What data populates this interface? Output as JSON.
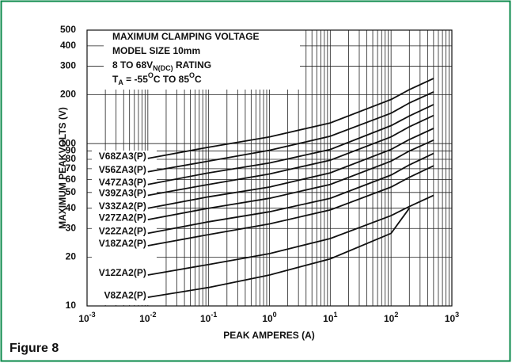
{
  "chart_data": {
    "type": "line",
    "caption": "Figure 8",
    "xlabel": "PEAK AMPERES (A)",
    "ylabel": "MAXIMUM PEAKVOLTS (V)",
    "annotation": [
      [
        {
          "text": "MAXIMUM CLAMPING VOLTAGE"
        }
      ],
      [
        {
          "text": "MODEL SIZE 10mm"
        }
      ],
      [
        {
          "text": "8 TO 68V"
        },
        {
          "text": "N(DC)",
          "style": "sub"
        },
        {
          "text": " RATING"
        }
      ],
      [
        {
          "text": "T"
        },
        {
          "text": "A",
          "style": "sub"
        },
        {
          "text": " = -55"
        },
        {
          "text": "O",
          "style": "sup"
        },
        {
          "text": "C TO 85"
        },
        {
          "text": "O",
          "style": "sup"
        },
        {
          "text": "C"
        }
      ]
    ],
    "xlog": true,
    "ylog": true,
    "grid": true,
    "minor_xgrid": true,
    "xlim": [
      0.001,
      1000
    ],
    "ylim": [
      10,
      500
    ],
    "xticks": [
      {
        "value": 0.001,
        "label": "10",
        "sup": "-3"
      },
      {
        "value": 0.01,
        "label": "10",
        "sup": "-2"
      },
      {
        "value": 0.1,
        "label": "10",
        "sup": "-1"
      },
      {
        "value": 1,
        "label": "10",
        "sup": "0"
      },
      {
        "value": 10,
        "label": "10",
        "sup": "1"
      },
      {
        "value": 100,
        "label": "10",
        "sup": "2"
      },
      {
        "value": 1000,
        "label": "10",
        "sup": "3"
      }
    ],
    "yticks": [
      10,
      20,
      30,
      40,
      50,
      60,
      70,
      80,
      90,
      100,
      200,
      300,
      400,
      500
    ],
    "x": [
      0.01,
      0.1,
      1,
      10,
      100,
      200,
      500
    ],
    "series": [
      {
        "name": "V68ZA3(P)",
        "color": "#111",
        "values": [
          81,
          95,
          110,
          134,
          187,
          215,
          252
        ]
      },
      {
        "name": "V56ZA3(P)",
        "color": "#111",
        "values": [
          67,
          78,
          91,
          111,
          154,
          178,
          208
        ]
      },
      {
        "name": "V47ZA3(P)",
        "color": "#111",
        "values": [
          56,
          66,
          76,
          92,
          129,
          148,
          174
        ]
      },
      {
        "name": "V39ZA3(P)",
        "color": "#111",
        "values": [
          48,
          56,
          65,
          79,
          110,
          127,
          149
        ]
      },
      {
        "name": "V33ZA2(P)",
        "color": "#111",
        "values": [
          40,
          47,
          54,
          66,
          92,
          106,
          124
        ]
      },
      {
        "name": "V27ZA2(P)",
        "color": "#111",
        "values": [
          34,
          40,
          46,
          56,
          78,
          90,
          105
        ]
      },
      {
        "name": "V22ZA2(P)",
        "color": "#111",
        "values": [
          28,
          33,
          38,
          46,
          64,
          74,
          87
        ]
      },
      {
        "name": "V18ZA2(P)",
        "color": "#111",
        "values": [
          23.5,
          27.5,
          32,
          39,
          54,
          62,
          73
        ]
      },
      {
        "name": "V12ZA2(P)",
        "color": "#111",
        "values": [
          15.5,
          18,
          21,
          26,
          36,
          41,
          48
        ]
      },
      {
        "name": "V8ZA2(P)",
        "color": "#111",
        "values": [
          11.3,
          13,
          15.5,
          19.5,
          28,
          40,
          null
        ]
      }
    ]
  }
}
